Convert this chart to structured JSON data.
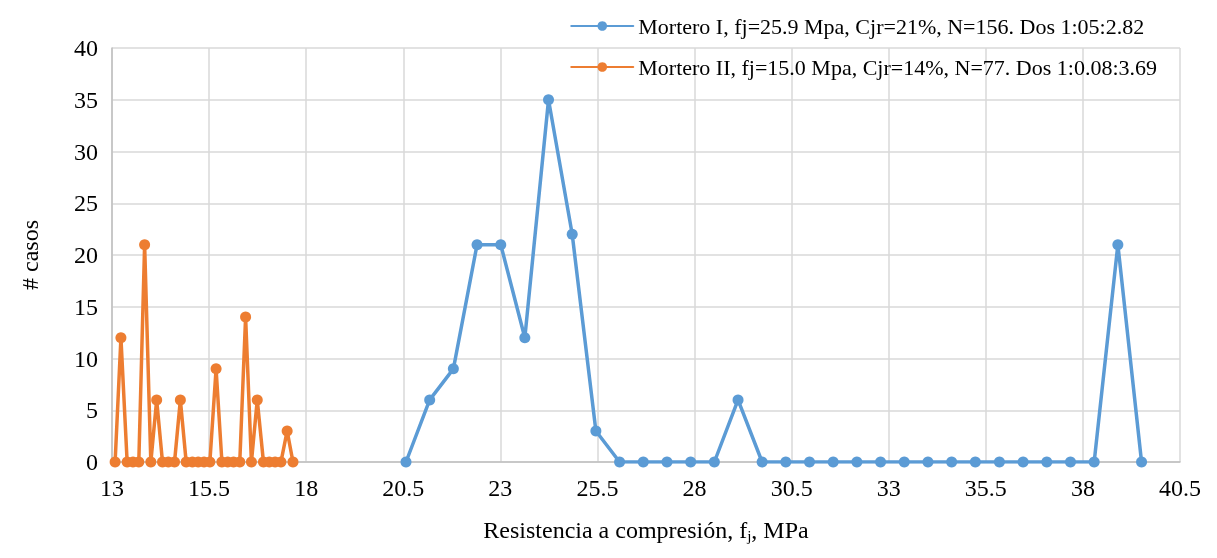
{
  "chart_data": {
    "type": "line",
    "xlabel": "Resistencia a compresión, f$_{j}$, MPa",
    "ylabel": "# casos",
    "series": [
      {
        "name": "Mortero I, fj=25.9 Mpa, Cjr=21%, N=156. Dos 1:05:2.82",
        "color": "#5b9bd5",
        "x": [
          20.57,
          21.18,
          21.79,
          22.4,
          23.01,
          23.63,
          24.24,
          24.85,
          25.46,
          26.07,
          26.68,
          27.29,
          27.9,
          28.51,
          29.12,
          29.74,
          30.35,
          30.96,
          31.57,
          32.18,
          32.79,
          33.4,
          34.01,
          34.62,
          35.23,
          35.85,
          36.46,
          37.07,
          37.68,
          38.29,
          38.9,
          39.51
        ],
        "values": [
          0,
          6,
          9,
          21,
          21,
          12,
          35,
          22,
          3,
          0,
          0,
          0,
          0,
          0,
          6,
          0,
          0,
          0,
          0,
          0,
          0,
          0,
          0,
          0,
          0,
          0,
          0,
          0,
          0,
          0,
          21,
          0
        ]
      },
      {
        "name": "Mortero II, fj=15.0 Mpa, Cjr=14%, N=77. Dos 1:0.08:3.69",
        "color": "#ed7d31",
        "x": [
          13.08,
          13.23,
          13.39,
          13.54,
          13.69,
          13.84,
          14.0,
          14.15,
          14.3,
          14.45,
          14.61,
          14.76,
          14.91,
          15.07,
          15.22,
          15.37,
          15.52,
          15.68,
          15.83,
          15.98,
          16.13,
          16.29,
          16.44,
          16.59,
          16.74,
          16.9,
          17.05,
          17.2,
          17.35,
          17.51,
          17.66
        ],
        "values": [
          0,
          12,
          0,
          0,
          0,
          21,
          0,
          6,
          0,
          0,
          0,
          6,
          0,
          0,
          0,
          0,
          0,
          9,
          0,
          0,
          0,
          0,
          14,
          0,
          6,
          0,
          0,
          0,
          0,
          3,
          0
        ]
      }
    ],
    "xlim": [
      13,
      40.5
    ],
    "xticks": [
      13,
      15.5,
      18,
      20.5,
      23,
      25.5,
      28,
      30.5,
      33,
      35.5,
      38,
      40.5
    ],
    "ylim": [
      0,
      40
    ],
    "yticks": [
      0,
      5,
      10,
      15,
      20,
      25,
      30,
      35,
      40
    ],
    "grid": true,
    "legend": "top right",
    "marker": "circle",
    "line_style": "solid"
  }
}
